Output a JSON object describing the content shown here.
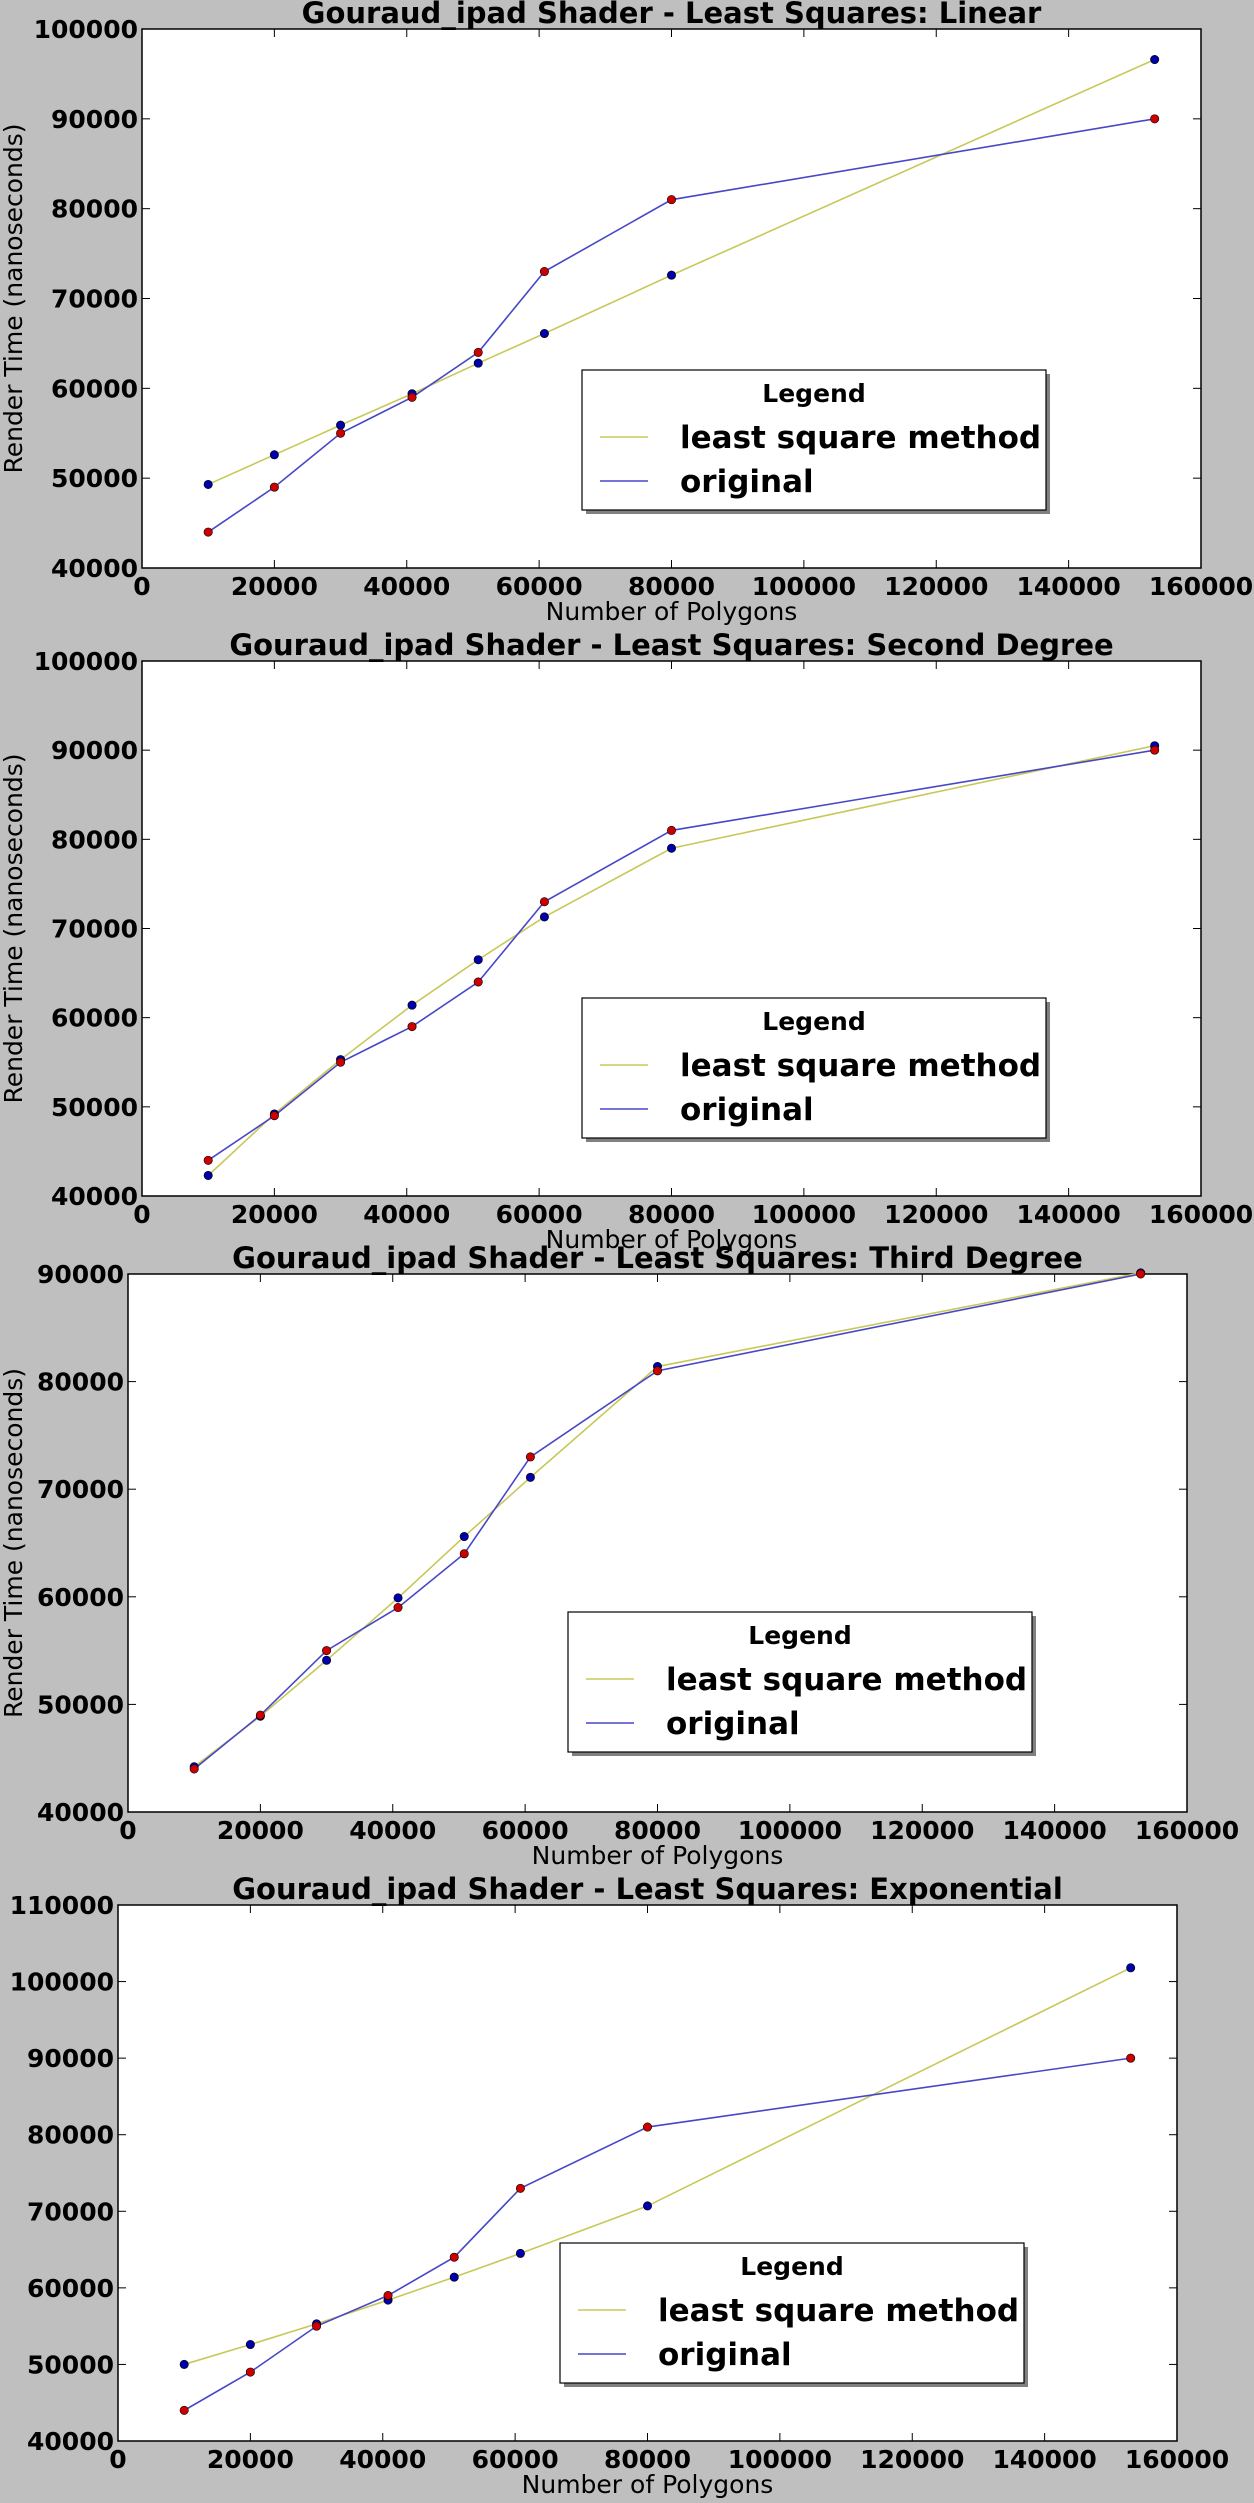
{
  "colors": {
    "figure_background": "#bfbfbf",
    "plot_background": "#ffffff",
    "fit_line": "#c8c85a",
    "original_line": "#4747c8",
    "fit_points": "#0000aa",
    "original_points": "#cc0000"
  },
  "chart_data": [
    {
      "type": "line",
      "title": "Gouraud_ipad Shader - Least Squares: Linear",
      "xlabel": "Number of Polygons",
      "ylabel": "Render Time (nanoseconds)",
      "xlim": [
        0,
        160000
      ],
      "ylim": [
        40000,
        100000
      ],
      "xticks": [
        "0",
        "20000",
        "40000",
        "60000",
        "80000",
        "100000",
        "120000",
        "140000",
        "160000"
      ],
      "yticks": [
        "40000",
        "50000",
        "60000",
        "70000",
        "80000",
        "90000",
        "100000"
      ],
      "grid": false,
      "legend": {
        "title": "Legend",
        "position": "lower-right",
        "entries": [
          "least square method",
          "original"
        ]
      },
      "x": [
        10000,
        20000,
        30000,
        40800,
        50800,
        60800,
        80000,
        153000
      ],
      "series": [
        {
          "name": "least square method",
          "values": [
            49300,
            52600,
            55900,
            59400,
            62800,
            66100,
            72600,
            96600
          ]
        },
        {
          "name": "original",
          "values": [
            44000,
            49000,
            55000,
            59000,
            64000,
            73000,
            81000,
            90000
          ]
        }
      ]
    },
    {
      "type": "line",
      "title": "Gouraud_ipad Shader - Least Squares: Second Degree",
      "xlabel": "Number of Polygons",
      "ylabel": "Render Time (nanoseconds)",
      "xlim": [
        0,
        160000
      ],
      "ylim": [
        40000,
        100000
      ],
      "xticks": [
        "0",
        "20000",
        "40000",
        "60000",
        "80000",
        "100000",
        "120000",
        "140000",
        "160000"
      ],
      "yticks": [
        "40000",
        "50000",
        "60000",
        "70000",
        "80000",
        "90000",
        "100000"
      ],
      "grid": false,
      "legend": {
        "title": "Legend",
        "position": "lower-right",
        "entries": [
          "least square method",
          "original"
        ]
      },
      "x": [
        10000,
        20000,
        30000,
        40800,
        50800,
        60800,
        80000,
        153000
      ],
      "series": [
        {
          "name": "least square method",
          "values": [
            42300,
            49200,
            55300,
            61400,
            66500,
            71300,
            79000,
            90500
          ]
        },
        {
          "name": "original",
          "values": [
            44000,
            49000,
            55000,
            59000,
            64000,
            73000,
            81000,
            90000
          ]
        }
      ]
    },
    {
      "type": "line",
      "title": "Gouraud_ipad Shader - Least Squares: Third Degree",
      "xlabel": "Number of Polygons",
      "ylabel": "Render Time (nanoseconds)",
      "xlim": [
        0,
        160000
      ],
      "ylim": [
        40000,
        90000
      ],
      "xticks": [
        "0",
        "20000",
        "40000",
        "60000",
        "80000",
        "100000",
        "120000",
        "140000",
        "160000"
      ],
      "yticks": [
        "40000",
        "50000",
        "60000",
        "70000",
        "80000",
        "90000"
      ],
      "grid": false,
      "legend": {
        "title": "Legend",
        "position": "lower-right",
        "entries": [
          "least square method",
          "original"
        ]
      },
      "x": [
        10000,
        20000,
        30000,
        40800,
        50800,
        60800,
        80000,
        153000
      ],
      "series": [
        {
          "name": "least square method",
          "values": [
            44200,
            48900,
            54100,
            59900,
            65600,
            71100,
            81400,
            90100
          ]
        },
        {
          "name": "original",
          "values": [
            44000,
            49000,
            55000,
            59000,
            64000,
            73000,
            81000,
            90000
          ]
        }
      ]
    },
    {
      "type": "line",
      "title": "Gouraud_ipad Shader - Least Squares: Exponential",
      "xlabel": "Number of Polygons",
      "ylabel": "",
      "xlim": [
        0,
        160000
      ],
      "ylim": [
        40000,
        110000
      ],
      "xticks": [
        "0",
        "20000",
        "40000",
        "60000",
        "80000",
        "100000",
        "120000",
        "140000",
        "160000"
      ],
      "yticks": [
        "40000",
        "50000",
        "60000",
        "70000",
        "80000",
        "90000",
        "100000",
        "110000"
      ],
      "grid": false,
      "legend": {
        "title": "Legend",
        "position": "lower-right",
        "entries": [
          "least square method",
          "original"
        ]
      },
      "x": [
        10000,
        20000,
        30000,
        40800,
        50800,
        60800,
        80000,
        153000
      ],
      "series": [
        {
          "name": "least square method",
          "values": [
            50000,
            52600,
            55300,
            58400,
            61400,
            64500,
            70700,
            101800
          ]
        },
        {
          "name": "original",
          "values": [
            44000,
            49000,
            55000,
            59000,
            64000,
            73000,
            81000,
            90000
          ]
        }
      ]
    }
  ]
}
